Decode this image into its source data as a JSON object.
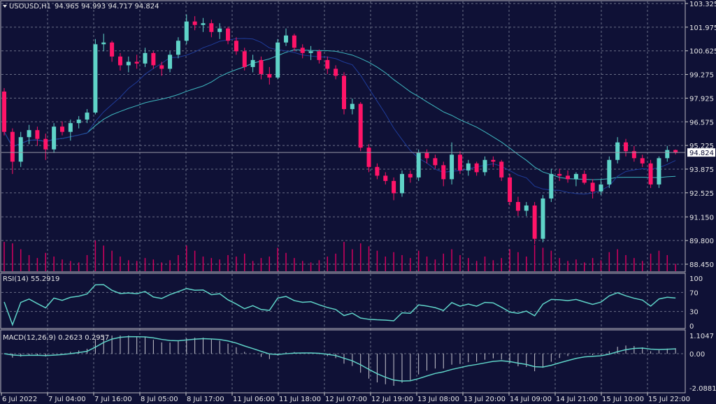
{
  "header": {
    "symbol": "USOUSD,H1",
    "ohlc_text": "94.965 94.993 94.717 94.824"
  },
  "colors": {
    "background": "#0f1136",
    "bull": "#5fd3c8",
    "bear": "#ff1468",
    "grid": "#6a6e86",
    "ma_fast": "#1f3c9a",
    "ma_slow": "#3fb8c0",
    "indicator": "#5fd3c8",
    "volume": "#d4005e"
  },
  "chart_data": [
    {
      "type": "candlestick",
      "price_ticks": [
        "103.325",
        "101.975",
        "100.625",
        "99.275",
        "97.925",
        "96.575",
        "95.225",
        "93.875",
        "92.525",
        "91.150",
        "89.800",
        "88.450"
      ],
      "ylim": [
        88.45,
        103.325
      ],
      "current_price": "94.824",
      "time_labels": [
        "6 Jul 2022",
        "7 Jul 04:00",
        "7 Jul 16:00",
        "8 Jul 05:00",
        "8 Jul 17:00",
        "11 Jul 06:00",
        "11 Jul 18:00",
        "12 Jul 07:00",
        "12 Jul 19:00",
        "13 Jul 08:00",
        "13 Jul 20:00",
        "14 Jul 09:00",
        "14 Jul 21:00",
        "15 Jul 10:00",
        "15 Jul 22:00"
      ],
      "ohlc": [
        [
          98.3,
          98.5,
          95.8,
          96.0
        ],
        [
          96.0,
          96.2,
          93.6,
          94.3
        ],
        [
          94.3,
          96.0,
          94.0,
          95.7
        ],
        [
          95.7,
          96.4,
          95.3,
          96.1
        ],
        [
          96.1,
          96.3,
          95.2,
          95.6
        ],
        [
          95.6,
          95.9,
          94.4,
          95.0
        ],
        [
          95.0,
          96.5,
          94.8,
          96.3
        ],
        [
          96.3,
          96.6,
          95.8,
          96.0
        ],
        [
          96.0,
          96.7,
          95.5,
          96.5
        ],
        [
          96.5,
          96.9,
          96.2,
          96.7
        ],
        [
          96.7,
          97.3,
          96.5,
          97.1
        ],
        [
          97.1,
          101.3,
          97.0,
          101.0
        ],
        [
          101.0,
          101.6,
          100.6,
          101.1
        ],
        [
          101.1,
          101.2,
          100.0,
          100.3
        ],
        [
          100.3,
          100.5,
          99.5,
          99.8
        ],
        [
          99.8,
          100.3,
          99.4,
          100.0
        ],
        [
          100.0,
          100.4,
          99.6,
          99.9
        ],
        [
          99.9,
          100.8,
          99.7,
          100.5
        ],
        [
          100.5,
          100.6,
          99.6,
          99.8
        ],
        [
          99.8,
          100.0,
          99.2,
          99.6
        ],
        [
          99.6,
          100.6,
          99.4,
          100.4
        ],
        [
          100.4,
          101.4,
          100.2,
          101.2
        ],
        [
          101.2,
          102.7,
          101.0,
          102.3
        ],
        [
          102.3,
          102.6,
          101.8,
          102.1
        ],
        [
          102.1,
          102.5,
          101.7,
          102.2
        ],
        [
          102.2,
          102.4,
          101.4,
          101.7
        ],
        [
          101.7,
          102.2,
          101.3,
          101.9
        ],
        [
          101.9,
          102.0,
          101.0,
          101.2
        ],
        [
          101.2,
          101.4,
          100.4,
          100.6
        ],
        [
          100.6,
          100.8,
          99.5,
          99.7
        ],
        [
          99.7,
          100.4,
          99.4,
          100.1
        ],
        [
          100.1,
          100.3,
          99.0,
          99.3
        ],
        [
          99.3,
          99.7,
          98.7,
          99.1
        ],
        [
          99.1,
          101.3,
          99.0,
          101.1
        ],
        [
          101.1,
          101.9,
          100.9,
          101.5
        ],
        [
          101.5,
          101.6,
          100.6,
          100.8
        ],
        [
          100.8,
          101.0,
          100.2,
          100.5
        ],
        [
          100.5,
          100.9,
          100.1,
          100.6
        ],
        [
          100.6,
          100.7,
          99.9,
          100.1
        ],
        [
          100.1,
          100.3,
          99.3,
          99.6
        ],
        [
          99.6,
          99.8,
          99.0,
          99.2
        ],
        [
          99.2,
          99.4,
          97.0,
          97.3
        ],
        [
          97.3,
          97.9,
          97.0,
          97.6
        ],
        [
          97.6,
          97.7,
          94.9,
          95.1
        ],
        [
          95.1,
          95.3,
          93.7,
          94.0
        ],
        [
          94.0,
          94.2,
          93.3,
          93.5
        ],
        [
          93.5,
          93.7,
          93.0,
          93.2
        ],
        [
          93.2,
          93.4,
          92.1,
          92.5
        ],
        [
          92.5,
          93.8,
          92.3,
          93.6
        ],
        [
          93.6,
          93.8,
          93.1,
          93.4
        ],
        [
          93.4,
          95.0,
          93.2,
          94.8
        ],
        [
          94.8,
          95.0,
          94.2,
          94.5
        ],
        [
          94.5,
          94.7,
          93.9,
          94.1
        ],
        [
          94.1,
          94.3,
          92.9,
          93.3
        ],
        [
          93.3,
          95.4,
          93.0,
          94.7
        ],
        [
          94.7,
          94.9,
          93.6,
          93.8
        ],
        [
          93.8,
          94.4,
          93.5,
          94.2
        ],
        [
          94.2,
          94.3,
          93.5,
          93.7
        ],
        [
          93.7,
          94.6,
          93.5,
          94.4
        ],
        [
          94.4,
          94.6,
          94.0,
          94.3
        ],
        [
          94.3,
          94.4,
          93.2,
          93.4
        ],
        [
          93.4,
          93.6,
          91.8,
          92.0
        ],
        [
          92.0,
          92.3,
          91.2,
          91.5
        ],
        [
          91.5,
          92.0,
          91.2,
          91.8
        ],
        [
          91.8,
          92.0,
          89.6,
          89.9
        ],
        [
          89.9,
          92.4,
          89.7,
          92.2
        ],
        [
          92.2,
          93.9,
          92.0,
          93.6
        ],
        [
          93.6,
          93.9,
          93.2,
          93.5
        ],
        [
          93.5,
          93.8,
          93.1,
          93.3
        ],
        [
          93.3,
          93.7,
          92.9,
          93.6
        ],
        [
          93.6,
          93.8,
          93.0,
          93.1
        ],
        [
          93.1,
          93.3,
          92.2,
          92.6
        ],
        [
          92.6,
          93.3,
          92.4,
          93.0
        ],
        [
          93.0,
          94.6,
          92.8,
          94.4
        ],
        [
          94.4,
          95.7,
          94.2,
          95.4
        ],
        [
          95.4,
          95.6,
          94.6,
          94.9
        ],
        [
          94.9,
          95.2,
          94.3,
          94.5
        ],
        [
          94.5,
          94.7,
          94.0,
          94.2
        ],
        [
          94.2,
          94.4,
          92.8,
          93.0
        ],
        [
          93.0,
          94.6,
          92.8,
          94.5
        ],
        [
          94.5,
          95.2,
          94.3,
          94.965
        ],
        [
          94.965,
          94.993,
          94.717,
          94.824
        ]
      ],
      "volume": [
        40,
        38,
        30,
        22,
        18,
        25,
        20,
        16,
        14,
        12,
        22,
        42,
        35,
        28,
        20,
        15,
        14,
        18,
        16,
        12,
        15,
        22,
        35,
        28,
        20,
        18,
        16,
        22,
        20,
        24,
        14,
        18,
        20,
        32,
        25,
        18,
        14,
        12,
        15,
        20,
        24,
        40,
        30,
        38,
        34,
        28,
        20,
        26,
        22,
        18,
        28,
        20,
        16,
        24,
        30,
        22,
        18,
        14,
        20,
        15,
        18,
        30,
        26,
        20,
        36,
        32,
        28,
        18,
        14,
        16,
        12,
        18,
        15,
        26,
        30,
        22,
        18,
        14,
        24,
        28,
        22,
        10
      ]
    },
    {
      "type": "line",
      "title": "RSI(14) 55.2919",
      "ticks": [
        "100",
        "70",
        "30",
        "0"
      ],
      "ylim": [
        0,
        100
      ]
    },
    {
      "type": "bar",
      "title": "MACD(12,26,9) 0.2623 0.2957",
      "ticks": [
        "1.1047",
        "0.00",
        "-2.0881"
      ],
      "ylim": [
        -2.0881,
        1.1047
      ]
    }
  ]
}
